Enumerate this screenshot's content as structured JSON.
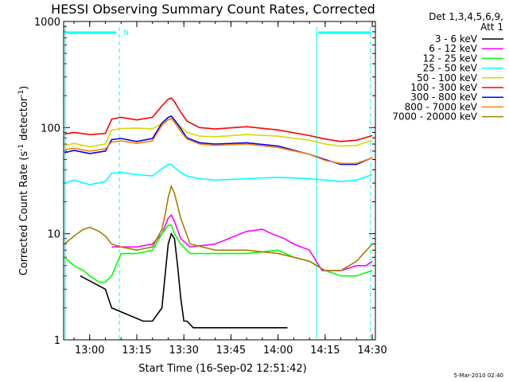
{
  "chart_data": {
    "type": "line",
    "title": "HESSI Observing Summary Count Rates, Corrected",
    "xlabel": "Start Time (16-Sep-02 12:51:42)",
    "ylabel_parts": {
      "a": "Corrected Count Rate (s",
      "sup1": "-1",
      "b": " detector",
      "sup2": "-1",
      "c": ")"
    },
    "yscale": "log",
    "ylim": [
      1,
      1000
    ],
    "xlim": [
      "12:51:42",
      "14:31:00"
    ],
    "x_ticks": [
      "13:00",
      "13:15",
      "13:30",
      "13:45",
      "14:00",
      "14:15",
      "14:30"
    ],
    "y_ticks": [
      "1",
      "10",
      "100",
      "1000"
    ],
    "legend_header": [
      "Det 1,3,4,5,6,9,",
      "Att 1"
    ],
    "series": [
      {
        "name": "3 - 6 keV",
        "color": "#000000",
        "times": [
          "12:57",
          "13:05",
          "13:07",
          "13:17",
          "13:20",
          "13:23",
          "13:24",
          "13:25",
          "13:26",
          "13:27",
          "13:28",
          "13:29",
          "13:30",
          "13:31",
          "13:33",
          "13:40",
          "13:50",
          "14:03"
        ],
        "values": [
          4,
          3,
          2,
          1.5,
          1.5,
          2,
          4,
          8,
          10,
          9,
          5,
          2.5,
          1.5,
          1.5,
          1.3,
          1.3,
          1.3,
          1.3
        ]
      },
      {
        "name": "6 - 12 keV",
        "color": "#ff00ff",
        "times": [
          "13:07",
          "13:15",
          "13:20",
          "13:23",
          "13:25",
          "13:26",
          "13:27",
          "13:29",
          "13:32",
          "13:40",
          "13:50",
          "13:55",
          "13:58",
          "14:02",
          "14:05",
          "14:10",
          "14:14",
          "14:20",
          "14:25",
          "14:28",
          "14:30"
        ],
        "values": [
          7.5,
          7.5,
          8,
          10,
          14,
          15,
          13,
          9,
          7.5,
          8,
          10.5,
          11,
          10,
          9,
          8,
          7,
          4.5,
          4.5,
          5,
          5,
          5.5
        ]
      },
      {
        "name": "12 - 25 keV",
        "color": "#00ff00",
        "times": [
          "12:52",
          "12:55",
          "12:58",
          "13:00",
          "13:03",
          "13:05",
          "13:07",
          "13:10",
          "13:15",
          "13:20",
          "13:23",
          "13:25",
          "13:26",
          "13:27",
          "13:29",
          "13:32",
          "13:40",
          "13:50",
          "14:00",
          "14:05",
          "14:10",
          "14:15",
          "14:20",
          "14:25",
          "14:30"
        ],
        "values": [
          6,
          5,
          4.5,
          4,
          3.5,
          3.5,
          4,
          6.5,
          6.5,
          7,
          10,
          12,
          12,
          10,
          8,
          6.5,
          6.5,
          6.5,
          7,
          6,
          5.5,
          4.5,
          4,
          4,
          4.5
        ]
      },
      {
        "name": "25 - 50 keV",
        "color": "#00ffff",
        "times": [
          "12:52",
          "12:55",
          "13:00",
          "13:05",
          "13:07",
          "13:10",
          "13:15",
          "13:20",
          "13:23",
          "13:25",
          "13:26",
          "13:27",
          "13:29",
          "13:31",
          "13:35",
          "13:40",
          "13:50",
          "14:00",
          "14:10",
          "14:15",
          "14:20",
          "14:25",
          "14:30"
        ],
        "values": [
          30,
          32,
          29,
          31,
          37,
          38,
          36,
          35,
          41,
          45,
          45,
          42,
          38,
          35,
          33,
          32,
          33,
          34,
          33,
          32,
          31,
          32,
          36
        ]
      },
      {
        "name": "50 - 100 keV",
        "color": "#d8d800",
        "times": [
          "12:52",
          "12:55",
          "13:00",
          "13:05",
          "13:07",
          "13:10",
          "13:15",
          "13:20",
          "13:23",
          "13:25",
          "13:26",
          "13:27",
          "13:29",
          "13:31",
          "13:35",
          "13:40",
          "13:50",
          "14:00",
          "14:10",
          "14:15",
          "14:20",
          "14:25",
          "14:30"
        ],
        "values": [
          68,
          71,
          66,
          70,
          95,
          98,
          99,
          97,
          110,
          120,
          120,
          114,
          102,
          90,
          83,
          82,
          86,
          83,
          76,
          70,
          67,
          68,
          76
        ]
      },
      {
        "name": "100 - 300 keV",
        "color": "#ff0000",
        "times": [
          "12:52",
          "12:55",
          "13:00",
          "13:05",
          "13:07",
          "13:10",
          "13:15",
          "13:20",
          "13:23",
          "13:25",
          "13:26",
          "13:27",
          "13:29",
          "13:31",
          "13:35",
          "13:40",
          "13:50",
          "14:00",
          "14:10",
          "14:15",
          "14:20",
          "14:25",
          "14:30"
        ],
        "values": [
          87,
          90,
          86,
          88,
          120,
          125,
          118,
          125,
          160,
          185,
          190,
          175,
          140,
          115,
          100,
          97,
          102,
          95,
          84,
          78,
          74,
          76,
          84
        ]
      },
      {
        "name": "300 - 800 keV",
        "color": "#0000ff",
        "times": [
          "12:52",
          "12:55",
          "13:00",
          "13:05",
          "13:07",
          "13:10",
          "13:15",
          "13:20",
          "13:23",
          "13:25",
          "13:26",
          "13:27",
          "13:29",
          "13:31",
          "13:35",
          "13:40",
          "13:50",
          "14:00",
          "14:10",
          "14:15",
          "14:20",
          "14:25",
          "14:30"
        ],
        "values": [
          58,
          61,
          57,
          60,
          77,
          79,
          74,
          79,
          110,
          125,
          128,
          118,
          98,
          80,
          72,
          70,
          72,
          67,
          56,
          50,
          45,
          45,
          52
        ]
      },
      {
        "name": "800 - 7000 keV",
        "color": "#ff8000",
        "times": [
          "12:52",
          "12:55",
          "13:00",
          "13:05",
          "13:07",
          "13:10",
          "13:15",
          "13:20",
          "13:23",
          "13:25",
          "13:26",
          "13:27",
          "13:29",
          "13:31",
          "13:35",
          "13:40",
          "13:50",
          "14:00",
          "14:10",
          "14:15",
          "14:20",
          "14:25",
          "14:30"
        ],
        "values": [
          62,
          64,
          60,
          63,
          73,
          75,
          71,
          75,
          105,
          118,
          122,
          112,
          92,
          78,
          70,
          68,
          70,
          65,
          56,
          49,
          46,
          46,
          52
        ]
      },
      {
        "name": "7000 - 20000 keV",
        "color": "#a08000",
        "times": [
          "12:52",
          "12:55",
          "12:58",
          "13:00",
          "13:03",
          "13:05",
          "13:07",
          "13:10",
          "13:15",
          "13:20",
          "13:23",
          "13:24",
          "13:25",
          "13:26",
          "13:27",
          "13:29",
          "13:32",
          "13:40",
          "13:50",
          "14:00",
          "14:05",
          "14:10",
          "14:15",
          "14:20",
          "14:25",
          "14:30"
        ],
        "values": [
          8,
          9.5,
          11,
          11.5,
          10.5,
          9.5,
          8,
          7.5,
          7,
          7.5,
          11,
          15,
          22,
          28,
          24,
          14,
          8,
          7,
          7,
          6.5,
          6,
          5.5,
          4.5,
          4.5,
          5.5,
          8
        ]
      }
    ],
    "annotations": {
      "flag_label": "N"
    },
    "footer": "5-Mar-2010 02:40"
  },
  "colors": {
    "flag_bar": "#00ffff",
    "background": "#ffffff",
    "axis": "#000000"
  }
}
